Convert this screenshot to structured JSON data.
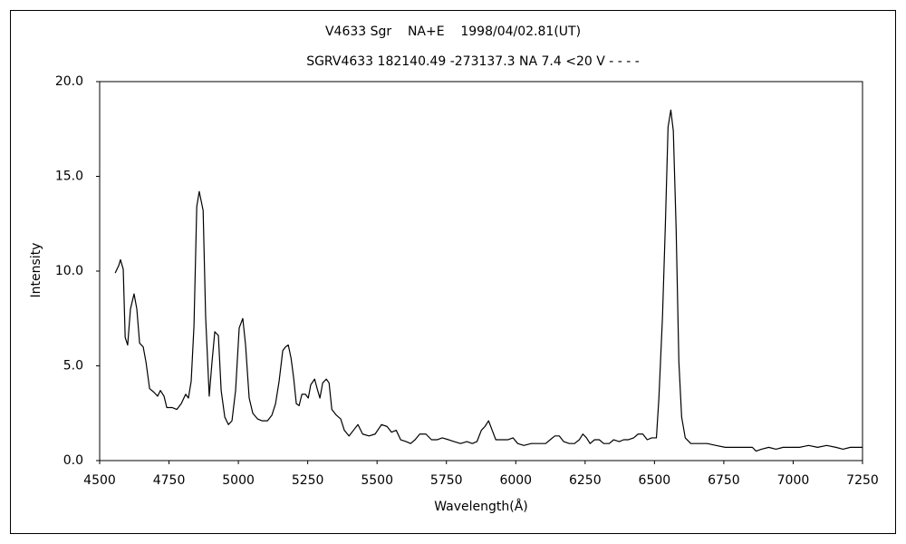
{
  "chart_data": {
    "type": "line",
    "title": "V4633 Sgr    NA+E    1998/04/02.81(UT)",
    "subtitle": "SGRV4633 182140.49 -273137.3 NA 7.4 <20 V - - - -",
    "x_label": "Wavelength(Å)",
    "y_label": "Intensity",
    "color": "#000000",
    "grid": false,
    "xlim": [
      4500,
      7250
    ],
    "xticks": [
      4500,
      4750,
      5000,
      5250,
      5500,
      5750,
      6000,
      6250,
      6500,
      6750,
      7000,
      7250
    ],
    "ylim": [
      0,
      20
    ],
    "yticks": [
      {
        "value": 0,
        "label": "0.0"
      },
      {
        "value": 5,
        "label": "5.0"
      },
      {
        "value": 10,
        "label": "10.0"
      },
      {
        "value": 15,
        "label": "15.0"
      },
      {
        "value": 20,
        "label": "20.0"
      }
    ],
    "x": [
      4556,
      4569,
      4575,
      4585,
      4592,
      4601,
      4611,
      4624,
      4634,
      4644,
      4657,
      4667,
      4680,
      4696,
      4709,
      4719,
      4732,
      4742,
      4761,
      4778,
      4794,
      4810,
      4820,
      4830,
      4840,
      4850,
      4859,
      4873,
      4882,
      4895,
      4905,
      4915,
      4928,
      4938,
      4951,
      4964,
      4977,
      4990,
      5003,
      5016,
      5026,
      5039,
      5052,
      5069,
      5085,
      5105,
      5121,
      5134,
      5147,
      5160,
      5170,
      5180,
      5190,
      5199,
      5209,
      5219,
      5229,
      5242,
      5252,
      5261,
      5275,
      5284,
      5294,
      5304,
      5317,
      5327,
      5337,
      5353,
      5369,
      5382,
      5399,
      5415,
      5431,
      5448,
      5471,
      5493,
      5516,
      5536,
      5552,
      5569,
      5585,
      5605,
      5621,
      5637,
      5654,
      5676,
      5696,
      5716,
      5735,
      5758,
      5778,
      5801,
      5824,
      5843,
      5860,
      5876,
      5889,
      5902,
      5915,
      5928,
      5948,
      5971,
      5990,
      6007,
      6029,
      6056,
      6082,
      6108,
      6124,
      6141,
      6157,
      6173,
      6193,
      6212,
      6229,
      6242,
      6255,
      6268,
      6284,
      6301,
      6317,
      6337,
      6353,
      6373,
      6389,
      6405,
      6425,
      6441,
      6458,
      6474,
      6490,
      6507,
      6516,
      6529,
      6539,
      6549,
      6559,
      6568,
      6578,
      6588,
      6598,
      6611,
      6631,
      6657,
      6690,
      6722,
      6755,
      6804,
      6853,
      6866,
      6886,
      6912,
      6938,
      6964,
      6990,
      7023,
      7056,
      7088,
      7121,
      7154,
      7180,
      7206,
      7229,
      7250
    ],
    "values": [
      9.9,
      10.3,
      10.6,
      10.1,
      6.5,
      6.1,
      8.0,
      8.8,
      8.0,
      6.2,
      6.0,
      5.2,
      3.8,
      3.6,
      3.4,
      3.7,
      3.4,
      2.8,
      2.8,
      2.7,
      3.0,
      3.5,
      3.3,
      4.2,
      7.1,
      13.4,
      14.2,
      13.2,
      7.6,
      3.4,
      5.2,
      6.8,
      6.6,
      3.7,
      2.3,
      1.9,
      2.1,
      3.7,
      7.0,
      7.5,
      6.1,
      3.3,
      2.5,
      2.2,
      2.1,
      2.1,
      2.4,
      3.0,
      4.2,
      5.8,
      6.0,
      6.1,
      5.4,
      4.4,
      3.0,
      2.9,
      3.5,
      3.5,
      3.3,
      4.0,
      4.3,
      3.8,
      3.3,
      4.1,
      4.3,
      4.1,
      2.7,
      2.4,
      2.2,
      1.6,
      1.3,
      1.6,
      1.9,
      1.4,
      1.3,
      1.4,
      1.9,
      1.8,
      1.5,
      1.6,
      1.1,
      1.0,
      0.9,
      1.1,
      1.4,
      1.4,
      1.1,
      1.1,
      1.2,
      1.1,
      1.0,
      0.9,
      1.0,
      0.9,
      1.0,
      1.6,
      1.8,
      2.1,
      1.6,
      1.1,
      1.1,
      1.1,
      1.2,
      0.9,
      0.8,
      0.9,
      0.9,
      0.9,
      1.1,
      1.3,
      1.3,
      1.0,
      0.9,
      0.9,
      1.1,
      1.4,
      1.2,
      0.9,
      1.1,
      1.1,
      0.9,
      0.9,
      1.1,
      1.0,
      1.1,
      1.1,
      1.2,
      1.4,
      1.4,
      1.1,
      1.2,
      1.2,
      3.3,
      7.6,
      12.3,
      17.6,
      18.5,
      17.4,
      12.3,
      5.2,
      2.3,
      1.2,
      0.9,
      0.9,
      0.9,
      0.8,
      0.7,
      0.7,
      0.7,
      0.5,
      0.6,
      0.7,
      0.6,
      0.7,
      0.7,
      0.7,
      0.8,
      0.7,
      0.8,
      0.7,
      0.6,
      0.7,
      0.7,
      0.7
    ]
  }
}
